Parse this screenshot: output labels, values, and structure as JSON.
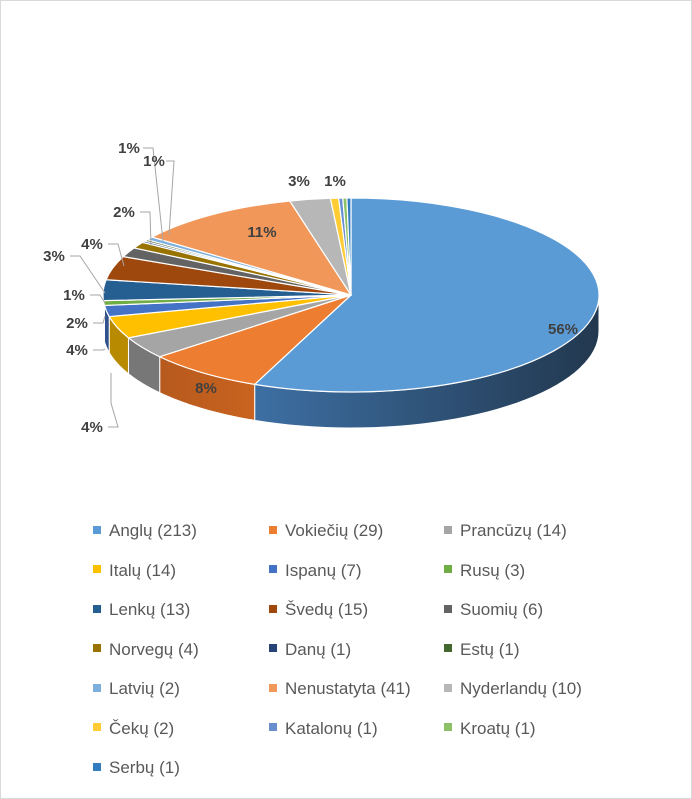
{
  "chart_data": {
    "type": "pie",
    "style": "3d-exploded-first",
    "legend_position": "bottom",
    "series": [
      {
        "name": "Anglų (213)",
        "value": 213,
        "percent_label": "56%",
        "color": "#5B9BD5"
      },
      {
        "name": "Vokiečių (29)",
        "value": 29,
        "percent_label": "8%",
        "color": "#ED7D31"
      },
      {
        "name": "Prancūzų (14)",
        "value": 14,
        "percent_label": "4%",
        "color": "#A5A5A5"
      },
      {
        "name": "Italų (14)",
        "value": 14,
        "percent_label": "4%",
        "color": "#FFC000"
      },
      {
        "name": "Ispanų (7)",
        "value": 7,
        "percent_label": "2%",
        "color": "#4472C4"
      },
      {
        "name": "Rusų (3)",
        "value": 3,
        "percent_label": "1%",
        "color": "#70AD47"
      },
      {
        "name": "Lenkų (13)",
        "value": 13,
        "percent_label": "3%",
        "color": "#255E91"
      },
      {
        "name": "Švedų (15)",
        "value": 15,
        "percent_label": "4%",
        "color": "#9E480E"
      },
      {
        "name": "Suomių (6)",
        "value": 6,
        "percent_label": "2%",
        "color": "#636363"
      },
      {
        "name": "Norvegų (4)",
        "value": 4,
        "percent_label": "1%",
        "color": "#997300"
      },
      {
        "name": "Danų (1)",
        "value": 1,
        "percent_label": "",
        "color": "#264478"
      },
      {
        "name": "Estų (1)",
        "value": 1,
        "percent_label": "",
        "color": "#43682B"
      },
      {
        "name": "Latvių (2)",
        "value": 2,
        "percent_label": "1%",
        "color": "#7CAFDD"
      },
      {
        "name": "Nenustatyta (41)",
        "value": 41,
        "percent_label": "11%",
        "color": "#F1975A"
      },
      {
        "name": "Nyderlandų (10)",
        "value": 10,
        "percent_label": "3%",
        "color": "#B7B7B7"
      },
      {
        "name": "Čekų (2)",
        "value": 2,
        "percent_label": "1%",
        "color": "#FFCD33"
      },
      {
        "name": "Katalonų (1)",
        "value": 1,
        "percent_label": "",
        "color": "#698ED0"
      },
      {
        "name": "Kroatų (1)",
        "value": 1,
        "percent_label": "",
        "color": "#8CC168"
      },
      {
        "name": "Serbų (1)",
        "value": 1,
        "percent_label": "",
        "color": "#327DC2"
      }
    ]
  }
}
